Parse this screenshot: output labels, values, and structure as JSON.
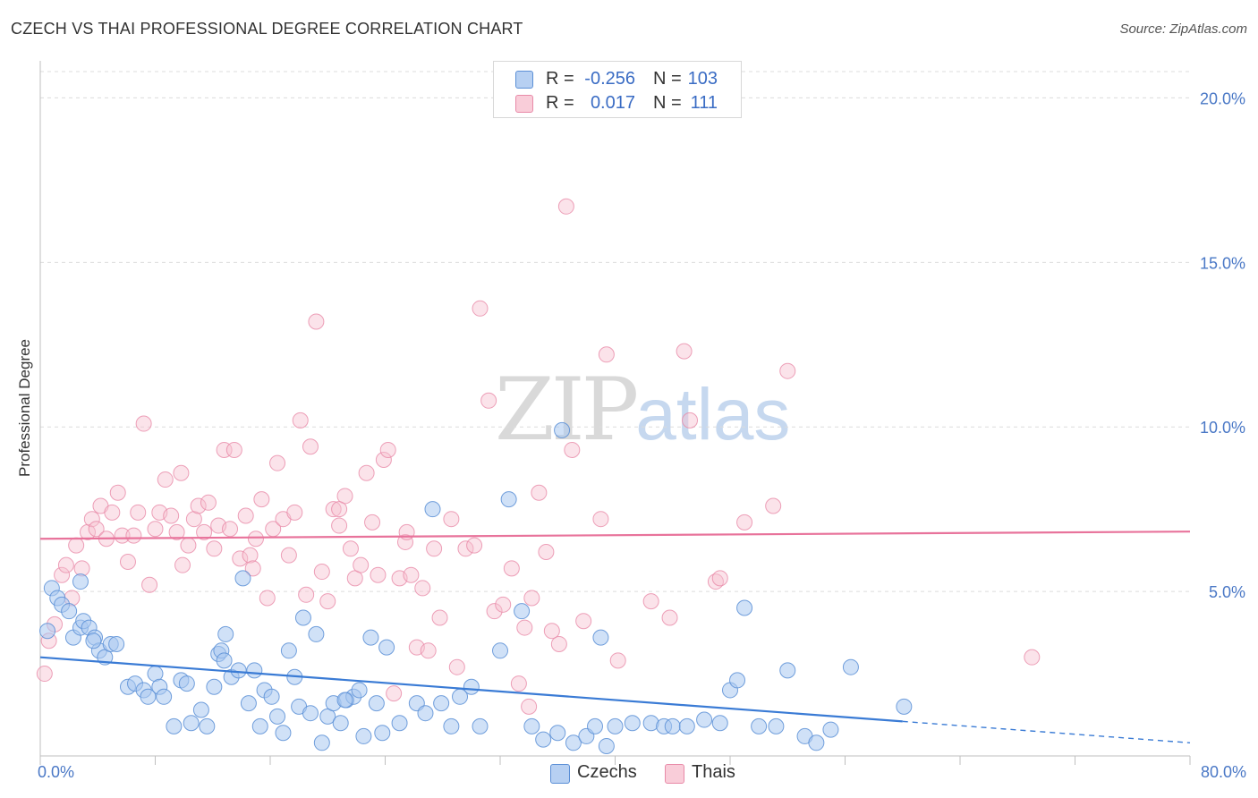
{
  "header": {
    "title": "CZECH VS THAI PROFESSIONAL DEGREE CORRELATION CHART",
    "source": "Source: ZipAtlas.com"
  },
  "watermark": {
    "zip": "ZIP",
    "atlas": "atlas"
  },
  "legend": {
    "czechs": {
      "r_label": "R =",
      "r_value": "-0.256",
      "n_label": "N =",
      "n_value": "103"
    },
    "thais": {
      "r_label": "R =",
      "r_value": "0.017",
      "n_label": "N =",
      "n_value": "111"
    }
  },
  "bottom_legend": {
    "czechs": "Czechs",
    "thais": "Thais"
  },
  "colors": {
    "czech_fill": "#a9c8f0",
    "czech_stroke": "#5b8fd6",
    "czech_line": "#3a7bd5",
    "thai_fill": "#f7c0d0",
    "thai_stroke": "#e88aa8",
    "thai_line": "#e8739b",
    "tick": "#4a78c6",
    "grid": "#dcdcdc"
  },
  "chart_data": {
    "type": "scatter",
    "title": "CZECH VS THAI PROFESSIONAL DEGREE CORRELATION CHART",
    "xlabel": "",
    "ylabel": "Professional Degree",
    "xlim": [
      0,
      80
    ],
    "ylim": [
      0,
      20.8
    ],
    "x_tick_labels": [
      "0.0%",
      "80.0%"
    ],
    "y_ticks": [
      5,
      10,
      15,
      20
    ],
    "y_tick_labels": [
      "5.0%",
      "10.0%",
      "15.0%",
      "20.0%"
    ],
    "grid": true,
    "series": [
      {
        "name": "Czechs",
        "trend": {
          "x0": 0,
          "y0": 3.0,
          "x1": 60,
          "y1": 1.05,
          "x_dash_end": 80,
          "y_dash_end": 0.4
        },
        "points": [
          [
            0.5,
            3.8
          ],
          [
            0.8,
            5.1
          ],
          [
            1.2,
            4.8
          ],
          [
            1.5,
            4.6
          ],
          [
            2.0,
            4.4
          ],
          [
            2.3,
            3.6
          ],
          [
            2.8,
            3.9
          ],
          [
            3.0,
            4.1
          ],
          [
            3.4,
            3.9
          ],
          [
            3.8,
            3.6
          ],
          [
            4.1,
            3.2
          ],
          [
            4.5,
            3.0
          ],
          [
            4.9,
            3.4
          ],
          [
            5.3,
            3.4
          ],
          [
            3.7,
            3.5
          ],
          [
            2.8,
            5.3
          ],
          [
            6.1,
            2.1
          ],
          [
            6.6,
            2.2
          ],
          [
            7.2,
            2.0
          ],
          [
            7.5,
            1.8
          ],
          [
            8.0,
            2.5
          ],
          [
            8.3,
            2.1
          ],
          [
            8.6,
            1.8
          ],
          [
            9.3,
            0.9
          ],
          [
            9.8,
            2.3
          ],
          [
            10.2,
            2.2
          ],
          [
            10.5,
            1.0
          ],
          [
            11.2,
            1.4
          ],
          [
            11.6,
            0.9
          ],
          [
            12.1,
            2.1
          ],
          [
            12.4,
            3.1
          ],
          [
            12.6,
            3.2
          ],
          [
            12.9,
            3.7
          ],
          [
            13.3,
            2.4
          ],
          [
            13.8,
            2.6
          ],
          [
            14.1,
            5.4
          ],
          [
            14.5,
            1.6
          ],
          [
            14.9,
            2.6
          ],
          [
            15.3,
            0.9
          ],
          [
            15.6,
            2.0
          ],
          [
            16.1,
            1.8
          ],
          [
            16.5,
            1.2
          ],
          [
            16.9,
            0.7
          ],
          [
            17.3,
            3.2
          ],
          [
            17.7,
            2.4
          ],
          [
            18.0,
            1.5
          ],
          [
            18.3,
            4.2
          ],
          [
            18.8,
            1.3
          ],
          [
            19.2,
            3.7
          ],
          [
            19.6,
            0.4
          ],
          [
            20.0,
            1.2
          ],
          [
            20.4,
            1.6
          ],
          [
            20.9,
            1.0
          ],
          [
            21.3,
            1.7
          ],
          [
            21.8,
            1.8
          ],
          [
            22.2,
            2.0
          ],
          [
            22.5,
            0.6
          ],
          [
            23.0,
            3.6
          ],
          [
            23.4,
            1.6
          ],
          [
            23.8,
            0.7
          ],
          [
            24.1,
            3.3
          ],
          [
            25.0,
            1.0
          ],
          [
            26.2,
            1.6
          ],
          [
            26.8,
            1.3
          ],
          [
            27.3,
            7.5
          ],
          [
            27.9,
            1.6
          ],
          [
            28.6,
            0.9
          ],
          [
            29.2,
            1.8
          ],
          [
            30.0,
            2.1
          ],
          [
            30.6,
            0.9
          ],
          [
            32.0,
            3.2
          ],
          [
            32.6,
            7.8
          ],
          [
            33.5,
            4.4
          ],
          [
            34.2,
            0.9
          ],
          [
            35.0,
            0.5
          ],
          [
            36.0,
            0.7
          ],
          [
            37.1,
            0.4
          ],
          [
            38.0,
            0.6
          ],
          [
            38.6,
            0.9
          ],
          [
            39.4,
            0.3
          ],
          [
            40.0,
            0.9
          ],
          [
            41.2,
            1.0
          ],
          [
            42.5,
            1.0
          ],
          [
            43.4,
            0.9
          ],
          [
            44.0,
            0.9
          ],
          [
            45.0,
            0.9
          ],
          [
            46.2,
            1.1
          ],
          [
            47.3,
            1.0
          ],
          [
            48.0,
            2.0
          ],
          [
            48.5,
            2.3
          ],
          [
            49.0,
            4.5
          ],
          [
            50.0,
            0.9
          ],
          [
            51.2,
            0.9
          ],
          [
            52.0,
            2.6
          ],
          [
            53.2,
            0.6
          ],
          [
            54.0,
            0.4
          ],
          [
            55.0,
            0.8
          ],
          [
            56.4,
            2.7
          ],
          [
            60.1,
            1.5
          ],
          [
            39.0,
            3.6
          ],
          [
            36.3,
            9.9
          ],
          [
            21.2,
            1.7
          ],
          [
            12.8,
            2.9
          ]
        ]
      },
      {
        "name": "Thais",
        "trend": {
          "x0": 0,
          "y0": 6.6,
          "x1": 80,
          "y1": 6.82
        },
        "points": [
          [
            0.3,
            2.5
          ],
          [
            0.6,
            3.5
          ],
          [
            1.0,
            4.0
          ],
          [
            1.5,
            5.5
          ],
          [
            1.8,
            5.8
          ],
          [
            2.2,
            4.8
          ],
          [
            2.5,
            6.4
          ],
          [
            2.9,
            5.7
          ],
          [
            3.3,
            6.8
          ],
          [
            3.6,
            7.2
          ],
          [
            3.9,
            6.9
          ],
          [
            4.2,
            7.6
          ],
          [
            4.6,
            6.6
          ],
          [
            5.0,
            7.4
          ],
          [
            5.4,
            8.0
          ],
          [
            5.7,
            6.7
          ],
          [
            6.1,
            5.9
          ],
          [
            6.5,
            6.7
          ],
          [
            6.8,
            7.4
          ],
          [
            7.2,
            10.1
          ],
          [
            7.6,
            5.2
          ],
          [
            8.0,
            6.9
          ],
          [
            8.3,
            7.4
          ],
          [
            8.7,
            8.4
          ],
          [
            9.1,
            7.3
          ],
          [
            9.5,
            6.8
          ],
          [
            9.9,
            5.8
          ],
          [
            10.3,
            6.4
          ],
          [
            10.7,
            7.2
          ],
          [
            11.0,
            7.6
          ],
          [
            11.4,
            6.8
          ],
          [
            11.7,
            7.7
          ],
          [
            12.1,
            6.3
          ],
          [
            12.4,
            7.0
          ],
          [
            12.8,
            9.3
          ],
          [
            13.2,
            6.9
          ],
          [
            13.5,
            9.3
          ],
          [
            13.9,
            6.0
          ],
          [
            14.3,
            7.3
          ],
          [
            14.6,
            6.1
          ],
          [
            15.0,
            6.6
          ],
          [
            15.4,
            7.8
          ],
          [
            15.8,
            4.8
          ],
          [
            16.2,
            6.9
          ],
          [
            16.5,
            8.9
          ],
          [
            16.9,
            7.2
          ],
          [
            17.3,
            6.1
          ],
          [
            17.7,
            7.4
          ],
          [
            18.1,
            10.2
          ],
          [
            18.5,
            4.9
          ],
          [
            18.8,
            9.4
          ],
          [
            19.2,
            13.2
          ],
          [
            19.6,
            5.6
          ],
          [
            20.0,
            4.7
          ],
          [
            20.4,
            7.5
          ],
          [
            20.8,
            7.0
          ],
          [
            21.2,
            7.9
          ],
          [
            21.6,
            6.3
          ],
          [
            21.9,
            5.4
          ],
          [
            22.3,
            5.8
          ],
          [
            22.7,
            8.6
          ],
          [
            23.1,
            7.1
          ],
          [
            23.5,
            5.5
          ],
          [
            23.9,
            9.0
          ],
          [
            24.2,
            9.3
          ],
          [
            24.6,
            1.9
          ],
          [
            25.0,
            5.4
          ],
          [
            25.4,
            6.5
          ],
          [
            25.8,
            5.5
          ],
          [
            26.2,
            3.3
          ],
          [
            26.6,
            5.1
          ],
          [
            27.0,
            3.2
          ],
          [
            27.4,
            6.3
          ],
          [
            27.8,
            4.2
          ],
          [
            28.6,
            7.2
          ],
          [
            29.0,
            2.7
          ],
          [
            29.6,
            6.3
          ],
          [
            30.2,
            6.4
          ],
          [
            30.6,
            13.6
          ],
          [
            31.2,
            10.8
          ],
          [
            31.6,
            4.4
          ],
          [
            32.2,
            4.6
          ],
          [
            32.8,
            5.7
          ],
          [
            33.3,
            2.2
          ],
          [
            33.7,
            3.9
          ],
          [
            34.2,
            4.8
          ],
          [
            34.7,
            8.0
          ],
          [
            35.2,
            6.2
          ],
          [
            35.6,
            3.8
          ],
          [
            36.1,
            3.4
          ],
          [
            36.6,
            16.7
          ],
          [
            37.0,
            9.3
          ],
          [
            37.8,
            4.1
          ],
          [
            39.0,
            7.2
          ],
          [
            39.4,
            12.2
          ],
          [
            40.2,
            2.9
          ],
          [
            42.5,
            4.7
          ],
          [
            43.8,
            4.2
          ],
          [
            44.8,
            12.3
          ],
          [
            45.2,
            10.2
          ],
          [
            47.0,
            5.3
          ],
          [
            47.3,
            5.4
          ],
          [
            49.0,
            7.1
          ],
          [
            51.0,
            7.6
          ],
          [
            52.0,
            11.7
          ],
          [
            69.0,
            3.0
          ],
          [
            25.5,
            6.8
          ],
          [
            34.0,
            1.5
          ],
          [
            20.8,
            7.5
          ],
          [
            14.8,
            5.7
          ],
          [
            9.8,
            8.6
          ]
        ]
      }
    ]
  }
}
